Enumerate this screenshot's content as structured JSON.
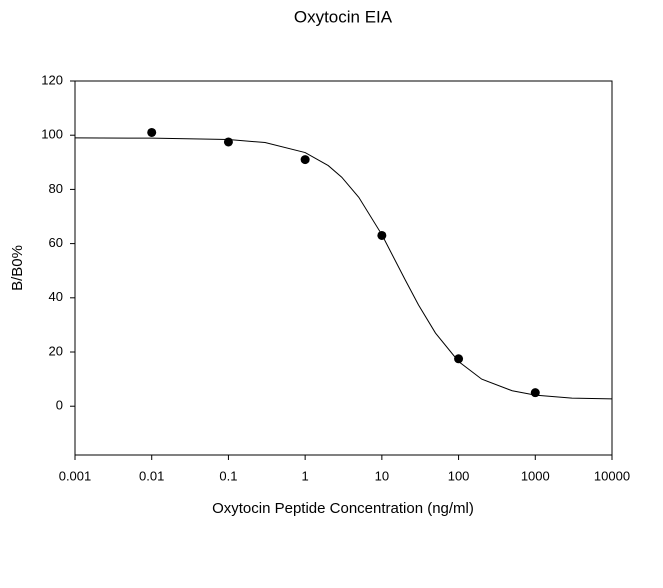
{
  "chart_data": {
    "type": "scatter",
    "title": "Oxytocin EIA",
    "x_label": "Oxytocin Peptide Concentration (ng/ml)",
    "y_label": "B/B0%",
    "x": [
      0.01,
      0.1,
      1,
      10,
      100,
      1000
    ],
    "values": [
      101,
      97.5,
      91,
      63,
      17.5,
      5
    ],
    "color": "#000000",
    "curve": {
      "x": [
        0.001,
        0.01,
        0.1,
        0.3,
        1,
        2,
        3,
        5,
        10,
        20,
        30,
        50,
        100,
        200,
        500,
        1000,
        3000,
        10000
      ],
      "values": [
        99.0,
        98.9,
        98.4,
        97.3,
        93.6,
        88.8,
        84.5,
        77.1,
        63.3,
        46.8,
        37.4,
        27.0,
        16.5,
        10.0,
        5.7,
        4.1,
        3.0,
        2.7
      ]
    },
    "x_scale": "log",
    "xlim": [
      0.001,
      10000
    ],
    "xticks": [
      0.001,
      0.01,
      0.1,
      1,
      10,
      100,
      1000,
      10000
    ],
    "ylim": [
      -18,
      120
    ],
    "yticks": [
      0,
      20,
      40,
      60,
      80,
      100,
      120
    ]
  }
}
